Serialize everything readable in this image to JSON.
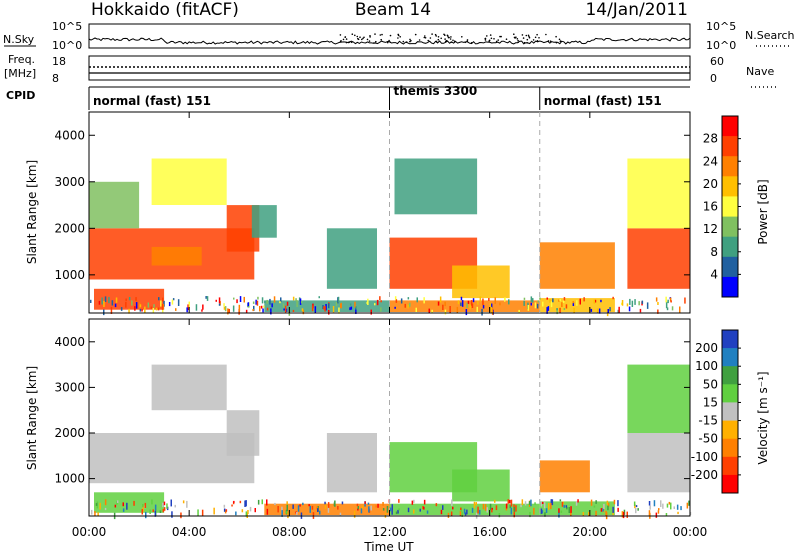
{
  "header": {
    "station": "Hokkaido (fitACF)",
    "beam": "Beam 14",
    "date": "14/Jan/2011"
  },
  "status_panel": {
    "nsky_label": "N.Sky",
    "nsearch_label": "N.Search",
    "freq_label_1": "Freq.",
    "freq_label_2": "[MHz]",
    "nave_label": "Nave",
    "cpid_label": "CPID",
    "nsky_ticks": [
      "10^5",
      "10^0"
    ],
    "nsearch_ticks": [
      "10^5",
      "10^0"
    ],
    "freq_ticks": [
      "18",
      "8"
    ],
    "nave_ticks": [
      "60",
      "0"
    ],
    "cpid_segments": [
      {
        "label": "normal (fast) 151",
        "start": 0,
        "end": 12
      },
      {
        "label": "themis 3300",
        "start": 12,
        "end": 18
      },
      {
        "label": "normal (fast) 151",
        "start": 18,
        "end": 24
      }
    ]
  },
  "power_panel": {
    "ylabel": "Slant Range [km]",
    "colorbar_label": "Power [dB]",
    "colorbar_ticks": [
      "28",
      "24",
      "20",
      "16",
      "12",
      "8",
      "4"
    ],
    "colorbar_colors": [
      "#ff0000",
      "#ff4000",
      "#ff8000",
      "#ffbf00",
      "#ffff40",
      "#80c060",
      "#40a080",
      "#2060a0",
      "#0000ff"
    ]
  },
  "velocity_panel": {
    "ylabel": "Slant Range [km]",
    "colorbar_label": "Velocity [m s⁻¹]",
    "colorbar_ticks": [
      "200",
      "100",
      "50",
      "15",
      "-15",
      "-50",
      "-100",
      "-200"
    ],
    "colorbar_colors": [
      "#2040c0",
      "#2080c0",
      "#40a040",
      "#60d040",
      "#c0c0c0",
      "#ffb000",
      "#ff8000",
      "#ff4000",
      "#ff0000"
    ]
  },
  "xaxis": {
    "label": "Time UT",
    "ticks": [
      "00:00",
      "04:00",
      "08:00",
      "12:00",
      "16:00",
      "20:00",
      "00:00"
    ]
  },
  "chart_data": [
    {
      "type": "heatmap",
      "title": "Power",
      "xlabel": "Time UT",
      "ylabel": "Slant Range [km]",
      "xlim": [
        0,
        24
      ],
      "ylim": [
        180,
        4500
      ],
      "yticks": [
        1000,
        2000,
        3000,
        4000
      ],
      "colorbar": {
        "label": "Power [dB]",
        "range": [
          0,
          30
        ],
        "ticks": [
          4,
          8,
          12,
          16,
          20,
          24,
          28
        ]
      },
      "regions": [
        {
          "t0": 0.0,
          "t1": 6.6,
          "r0": 900,
          "r1": 2000,
          "level": 26
        },
        {
          "t0": 0.2,
          "t1": 3.0,
          "r0": 250,
          "r1": 700,
          "level": 27
        },
        {
          "t0": 2.5,
          "t1": 4.5,
          "r0": 1200,
          "r1": 1600,
          "level": 22
        },
        {
          "t0": 5.5,
          "t1": 6.8,
          "r0": 1500,
          "r1": 2500,
          "level": 27
        },
        {
          "t0": 0.0,
          "t1": 2.0,
          "r0": 2000,
          "r1": 3000,
          "level": 12
        },
        {
          "t0": 2.5,
          "t1": 5.5,
          "r0": 2500,
          "r1": 3500,
          "level": 16
        },
        {
          "t0": 6.5,
          "t1": 7.5,
          "r0": 1800,
          "r1": 2500,
          "level": 6
        },
        {
          "t0": 7.0,
          "t1": 12.0,
          "r0": 200,
          "r1": 450,
          "level": 8
        },
        {
          "t0": 9.5,
          "t1": 11.5,
          "r0": 700,
          "r1": 2000,
          "level": 8
        },
        {
          "t0": 12.0,
          "t1": 15.5,
          "r0": 700,
          "r1": 1800,
          "level": 26
        },
        {
          "t0": 12.2,
          "t1": 15.5,
          "r0": 2300,
          "r1": 3500,
          "level": 8
        },
        {
          "t0": 12.0,
          "t1": 18.0,
          "r0": 200,
          "r1": 450,
          "level": 24
        },
        {
          "t0": 14.5,
          "t1": 16.8,
          "r0": 500,
          "r1": 1200,
          "level": 20
        },
        {
          "t0": 18.0,
          "t1": 21.0,
          "r0": 700,
          "r1": 1700,
          "level": 24
        },
        {
          "t0": 18.0,
          "t1": 21.0,
          "r0": 200,
          "r1": 500,
          "level": 18
        },
        {
          "t0": 21.5,
          "t1": 24.0,
          "r0": 700,
          "r1": 2000,
          "level": 27
        },
        {
          "t0": 21.5,
          "t1": 24.0,
          "r0": 2000,
          "r1": 3500,
          "level": 14
        }
      ]
    },
    {
      "type": "heatmap",
      "title": "Velocity",
      "xlabel": "Time UT",
      "ylabel": "Slant Range [km]",
      "xlim": [
        0,
        24
      ],
      "ylim": [
        180,
        4500
      ],
      "yticks": [
        1000,
        2000,
        3000,
        4000
      ],
      "colorbar": {
        "label": "Velocity [m s⁻¹]",
        "range": [
          -250,
          250
        ],
        "ticks": [
          -200,
          -100,
          -50,
          -15,
          15,
          50,
          100,
          200
        ]
      },
      "regions": [
        {
          "t0": 0.0,
          "t1": 6.6,
          "r0": 900,
          "r1": 2000,
          "level": 0
        },
        {
          "t0": 0.2,
          "t1": 3.0,
          "r0": 250,
          "r1": 700,
          "level": 30
        },
        {
          "t0": 2.5,
          "t1": 5.5,
          "r0": 2500,
          "r1": 3500,
          "level": 0
        },
        {
          "t0": 5.5,
          "t1": 6.8,
          "r0": 1500,
          "r1": 2500,
          "level": 0
        },
        {
          "t0": 7.0,
          "t1": 12.0,
          "r0": 200,
          "r1": 450,
          "level": -60
        },
        {
          "t0": 9.5,
          "t1": 11.5,
          "r0": 700,
          "r1": 2000,
          "level": 0
        },
        {
          "t0": 12.0,
          "t1": 15.5,
          "r0": 700,
          "r1": 1800,
          "level": 40
        },
        {
          "t0": 12.0,
          "t1": 18.0,
          "r0": 200,
          "r1": 450,
          "level": 40
        },
        {
          "t0": 14.5,
          "t1": 16.8,
          "r0": 500,
          "r1": 1200,
          "level": 30
        },
        {
          "t0": 18.0,
          "t1": 20.0,
          "r0": 700,
          "r1": 1400,
          "level": -60
        },
        {
          "t0": 18.0,
          "t1": 21.0,
          "r0": 200,
          "r1": 500,
          "level": 35
        },
        {
          "t0": 21.5,
          "t1": 24.0,
          "r0": 700,
          "r1": 2000,
          "level": 0
        },
        {
          "t0": 21.5,
          "t1": 24.0,
          "r0": 2000,
          "r1": 3500,
          "level": 40
        }
      ]
    }
  ]
}
